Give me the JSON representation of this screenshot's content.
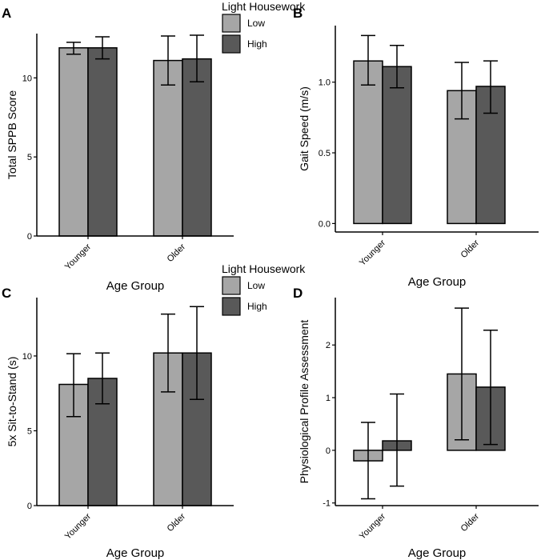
{
  "legend": {
    "title": "Light Housework",
    "items": [
      {
        "label": "Low",
        "color": "#a6a6a6"
      },
      {
        "label": "High",
        "color": "#595959"
      }
    ]
  },
  "chart_data": [
    {
      "panel": "A",
      "type": "bar",
      "xlabel": "Age Group",
      "ylabel": "Total SPPB Score",
      "categories": [
        "Younger",
        "Older"
      ],
      "ylim": [
        0,
        12.8
      ],
      "yticks": [
        0,
        5,
        10
      ],
      "ytick_labels": [
        "0",
        "5",
        "10"
      ],
      "series": [
        {
          "name": "Low",
          "values": [
            11.9,
            11.1
          ],
          "err_low": [
            11.5,
            9.55
          ],
          "err_high": [
            12.25,
            12.65
          ]
        },
        {
          "name": "High",
          "values": [
            11.9,
            11.2
          ],
          "err_low": [
            11.2,
            9.75
          ],
          "err_high": [
            12.6,
            12.7
          ]
        }
      ]
    },
    {
      "panel": "B",
      "type": "bar",
      "xlabel": "Age Group",
      "ylabel": "Gait Speed (m/s)",
      "categories": [
        "Younger",
        "Older"
      ],
      "ylim": [
        -0.06,
        1.4
      ],
      "yticks": [
        0,
        0.5,
        1
      ],
      "ytick_labels": [
        "0.0",
        "0.5",
        "1.0"
      ],
      "series": [
        {
          "name": "Low",
          "values": [
            1.15,
            0.94
          ],
          "err_low": [
            0.98,
            0.74
          ],
          "err_high": [
            1.33,
            1.14
          ]
        },
        {
          "name": "High",
          "values": [
            1.11,
            0.97
          ],
          "err_low": [
            0.96,
            0.78
          ],
          "err_high": [
            1.26,
            1.15
          ]
        }
      ]
    },
    {
      "panel": "C",
      "type": "bar",
      "xlabel": "Age Group",
      "ylabel": "5x Sit-to-Stand (s)",
      "categories": [
        "Younger",
        "Older"
      ],
      "ylim": [
        0,
        13.9
      ],
      "yticks": [
        0,
        5,
        10
      ],
      "ytick_labels": [
        "0",
        "5",
        "10"
      ],
      "series": [
        {
          "name": "Low",
          "values": [
            8.1,
            10.2
          ],
          "err_low": [
            5.95,
            7.6
          ],
          "err_high": [
            10.15,
            12.8
          ]
        },
        {
          "name": "High",
          "values": [
            8.5,
            10.2
          ],
          "err_low": [
            6.8,
            7.1
          ],
          "err_high": [
            10.2,
            13.3
          ]
        }
      ]
    },
    {
      "panel": "D",
      "type": "bar",
      "xlabel": "Age Group",
      "ylabel": "Physiological Profile Assessment",
      "categories": [
        "Younger",
        "Older"
      ],
      "ylim": [
        -1.05,
        2.9
      ],
      "yticks": [
        -1,
        0,
        1,
        2
      ],
      "ytick_labels": [
        "-1",
        "0",
        "1",
        "2"
      ],
      "series": [
        {
          "name": "Low",
          "values": [
            -0.2,
            1.45
          ],
          "err_low": [
            -0.92,
            0.2
          ],
          "err_high": [
            0.53,
            2.7
          ]
        },
        {
          "name": "High",
          "values": [
            0.18,
            1.2
          ],
          "err_low": [
            -0.68,
            0.11
          ],
          "err_high": [
            1.07,
            2.28
          ]
        }
      ]
    }
  ]
}
